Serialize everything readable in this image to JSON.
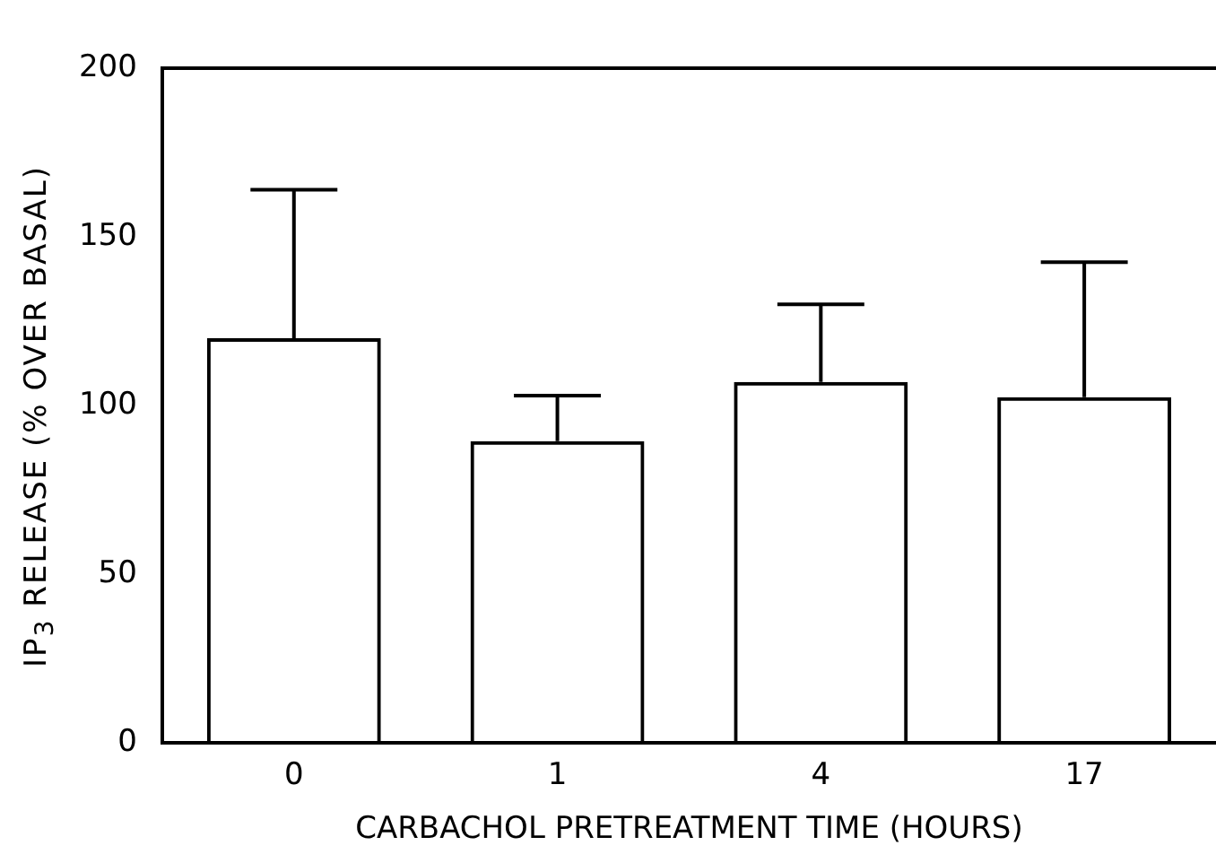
{
  "chart_data": {
    "type": "bar",
    "xlabel": "CARBACHOL PRETREATMENT TIME (HOURS)",
    "ylabel": "IP$_{3}$ RELEASE (% OVER BASAL)",
    "categories": [
      "0",
      "1",
      "4",
      "17"
    ],
    "values": [
      120,
      89.5,
      107,
      102.5
    ],
    "errors": [
      [
        120,
        164
      ],
      [
        89.5,
        103
      ],
      [
        107,
        130
      ],
      [
        102.5,
        142.5
      ]
    ],
    "color": "#000000",
    "ylim": [
      0,
      200
    ],
    "yticks": [
      0,
      50,
      100,
      150,
      200
    ],
    "grid": false,
    "legend": false
  }
}
